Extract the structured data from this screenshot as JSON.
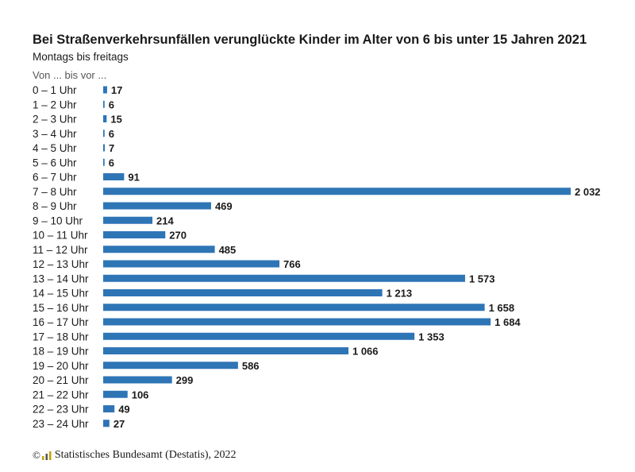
{
  "chart_data": {
    "type": "bar",
    "orientation": "horizontal",
    "title": "Bei Straßenverkehrsunfällen verunglückte Kinder im Alter von 6 bis unter 15 Jahren 2021",
    "subtitle": "Montags bis freitags",
    "category_caption": "Von ... bis vor ...",
    "categories": [
      "0 – 1 Uhr",
      "1 – 2 Uhr",
      "2 – 3 Uhr",
      "3 – 4 Uhr",
      "4 – 5 Uhr",
      "5 – 6 Uhr",
      "6 – 7 Uhr",
      "7 – 8 Uhr",
      "8 – 9 Uhr",
      "9 – 10 Uhr",
      "10 – 11 Uhr",
      "11 – 12 Uhr",
      "12 – 13 Uhr",
      "13 – 14 Uhr",
      "14 – 15 Uhr",
      "15 – 16 Uhr",
      "16 – 17 Uhr",
      "17 – 18 Uhr",
      "18 – 19 Uhr",
      "19 – 20 Uhr",
      "20 – 21 Uhr",
      "21 – 22 Uhr",
      "22 – 23 Uhr",
      "23 – 24 Uhr"
    ],
    "values": [
      17,
      6,
      15,
      6,
      7,
      6,
      91,
      2032,
      469,
      214,
      270,
      485,
      766,
      1573,
      1213,
      1658,
      1684,
      1353,
      1066,
      586,
      299,
      106,
      49,
      27
    ],
    "value_labels": [
      "17",
      "6",
      "15",
      "6",
      "7",
      "6",
      "91",
      "2 032",
      "469",
      "214",
      "270",
      "485",
      "766",
      "1 573",
      "1 213",
      "1 658",
      "1 684",
      "1 353",
      "1 066",
      "586",
      "299",
      "106",
      "49",
      "27"
    ],
    "xlim": [
      0,
      2032
    ],
    "grid": false,
    "legend": "none",
    "bar_color": "#2e75b6"
  },
  "footer": {
    "copyright": "©",
    "source": "Statistisches Bundesamt (Destatis), 2022",
    "logo_icon": "destatis-logo-icon"
  }
}
